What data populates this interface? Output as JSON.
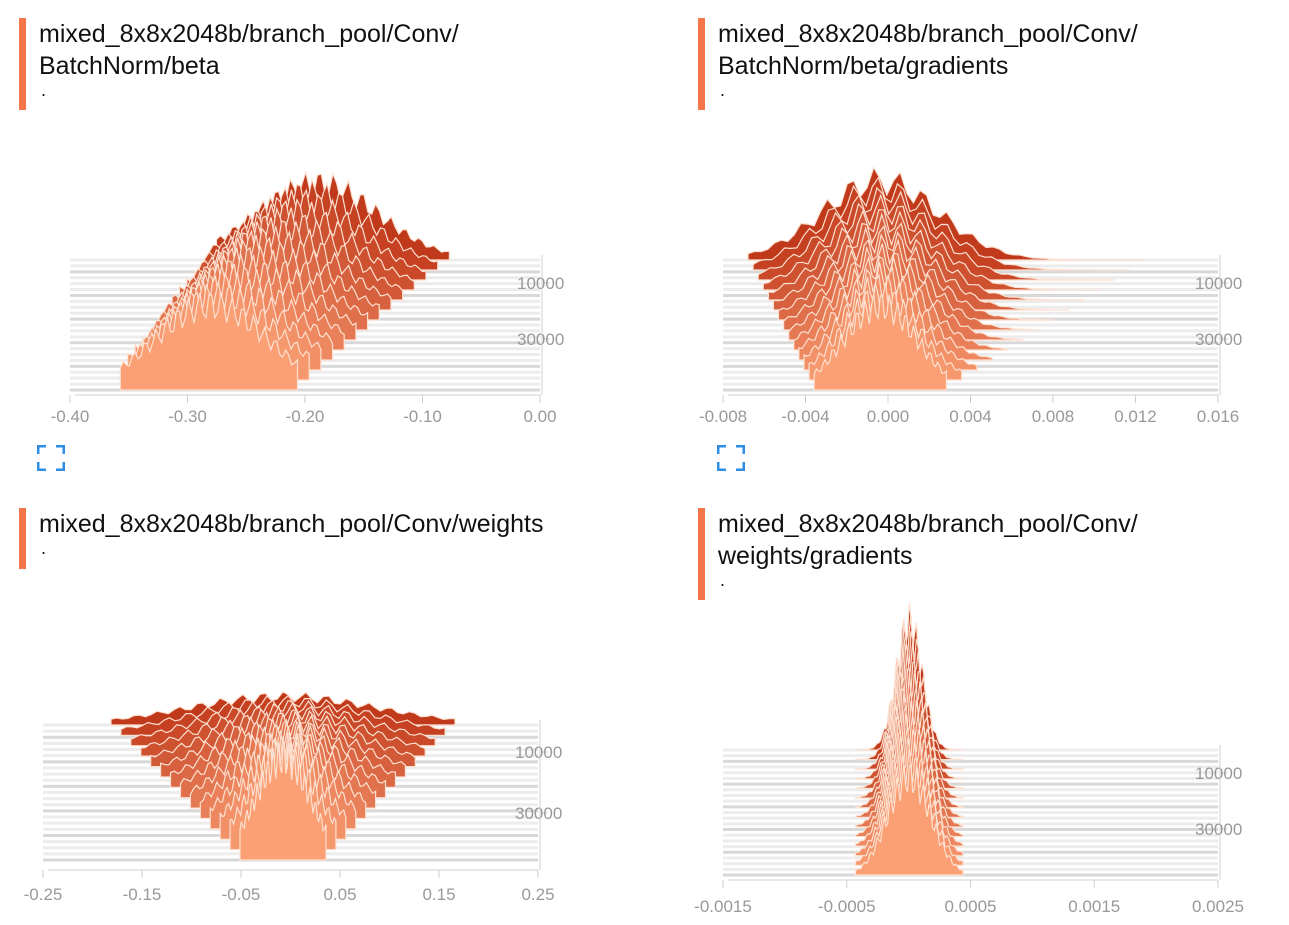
{
  "colors": {
    "accent": "#f4754a",
    "old_step": "#c0391b",
    "new_step": "#fba075",
    "axis_text": "#999999",
    "icon": "#2e8de5"
  },
  "icons": {
    "expand": "expand-corners-icon"
  },
  "cards": [
    {
      "title_lines": [
        "mixed_8x8x2048b/branch_pool/Conv/",
        "BatchNorm/beta"
      ],
      "subtitle": ".",
      "has_expand_icon": true
    },
    {
      "title_lines": [
        "mixed_8x8x2048b/branch_pool/Conv/",
        "BatchNorm/beta/gradients"
      ],
      "subtitle": ".",
      "has_expand_icon": true
    },
    {
      "title_lines": [
        "mixed_8x8x2048b/branch_pool/Conv/weights"
      ],
      "subtitle": ".",
      "has_expand_icon": false
    },
    {
      "title_lines": [
        "mixed_8x8x2048b/branch_pool/Conv/",
        "weights/gradients"
      ],
      "subtitle": ".",
      "has_expand_icon": false
    }
  ],
  "chart_data": [
    {
      "type": "histogram_ridgeline",
      "title": "mixed_8x8x2048b/branch_pool/Conv/BatchNorm/beta",
      "x_ticks": [
        "-0.40",
        "-0.30",
        "-0.20",
        "-0.10",
        "0.00"
      ],
      "xlim": [
        -0.4,
        0.0
      ],
      "y_ticks": [
        "10000",
        "30000"
      ],
      "step_range": [
        0,
        45000
      ],
      "series": [
        {
          "step": 0,
          "center": -0.285,
          "width": 0.055,
          "height": 1.0,
          "min": -0.375,
          "max": -0.2
        },
        {
          "step": 45000,
          "center": -0.18,
          "width": 0.06,
          "height": 0.9,
          "min": -0.28,
          "max": -0.05
        }
      ]
    },
    {
      "type": "histogram_ridgeline",
      "title": "mixed_8x8x2048b/branch_pool/Conv/BatchNorm/beta/gradients",
      "x_ticks": [
        "-0.008",
        "-0.004",
        "0.000",
        "0.004",
        "0.008",
        "0.012",
        "0.016"
      ],
      "xlim": [
        -0.008,
        0.018
      ],
      "y_ticks": [
        "10000",
        "30000"
      ],
      "step_range": [
        0,
        45000
      ],
      "series": [
        {
          "step": 0,
          "center": 0.0,
          "width": 0.0022,
          "height": 0.9,
          "min": -0.004,
          "max": 0.004
        },
        {
          "step": 45000,
          "center": 0.0,
          "width": 0.0035,
          "height": 0.85,
          "min": -0.008,
          "max": 0.016
        }
      ]
    },
    {
      "type": "histogram_ridgeline",
      "title": "mixed_8x8x2048b/branch_pool/Conv/weights",
      "x_ticks": [
        "-0.25",
        "-0.15",
        "-0.05",
        "0.05",
        "0.15",
        "0.25"
      ],
      "xlim": [
        -0.25,
        0.25
      ],
      "y_ticks": [
        "10000",
        "30000"
      ],
      "step_range": [
        0,
        45000
      ],
      "series": [
        {
          "step": 0,
          "center": 0.0,
          "width": 0.032,
          "height": 1.0,
          "min": -0.05,
          "max": 0.05
        },
        {
          "step": 45000,
          "center": 0.0,
          "width": 0.11,
          "height": 0.28,
          "min": -0.2,
          "max": 0.2
        }
      ]
    },
    {
      "type": "histogram_ridgeline",
      "title": "mixed_8x8x2048b/branch_pool/Conv/weights/gradients",
      "x_ticks": [
        "-0.0015",
        "-0.0005",
        "0.0005",
        "0.0015",
        "0.0025"
      ],
      "xlim": [
        -0.0015,
        0.0025
      ],
      "y_ticks": [
        "10000",
        "30000"
      ],
      "step_range": [
        0,
        45000
      ],
      "series": [
        {
          "step": 0,
          "center": 0.0,
          "width": 0.0002,
          "height": 1.0,
          "min": -0.0005,
          "max": 0.0005
        },
        {
          "step": 45000,
          "center": 0.0,
          "width": 0.00012,
          "height": 1.3,
          "min": -0.0005,
          "max": 0.0005
        }
      ]
    }
  ]
}
